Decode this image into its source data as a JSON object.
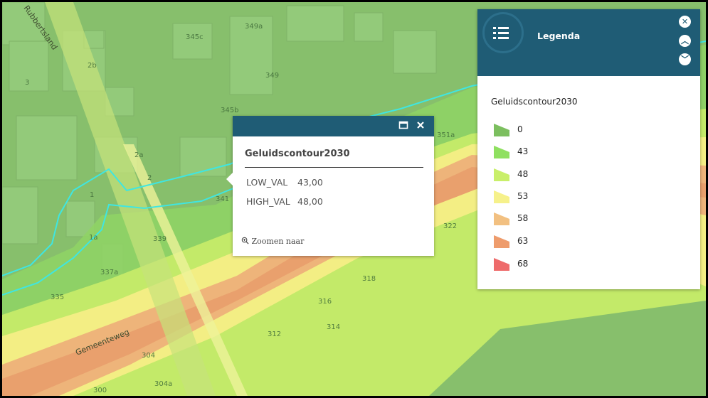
{
  "map": {
    "street_labels": [
      "Gemeenteweg",
      "Rubbertsland"
    ],
    "house_numbers": [
      "345c",
      "349a",
      "349",
      "2b",
      "3",
      "345b",
      "2a",
      "2",
      "1",
      "341",
      "1a",
      "339",
      "337a",
      "335",
      "351a",
      "322",
      "318",
      "316",
      "314",
      "312",
      "304",
      "304a",
      "300"
    ],
    "contour_colors": {
      "c0": "#7cbf5f",
      "c43": "#8fe060",
      "c48": "#c9ef6a",
      "c53": "#f6f18b",
      "c58": "#f2c081",
      "c63": "#ee9c6c",
      "c68": "#ee6b6b"
    },
    "boundary_color": "#3fe6e1"
  },
  "popup": {
    "title": "Geluidscontour2030",
    "rows": [
      {
        "key": "LOW_VAL",
        "value": "43,00"
      },
      {
        "key": "HIGH_VAL",
        "value": "48,00"
      }
    ],
    "zoom_label": "Zoomen naar",
    "icons": {
      "maximize": "window-maximize-icon",
      "close": "close-icon",
      "zoom": "magnifier-icon"
    }
  },
  "legend": {
    "title": "Legenda",
    "layer_name": "Geluidscontour2030",
    "items": [
      {
        "label": "0",
        "color": "#7cbf5f"
      },
      {
        "label": "43",
        "color": "#8fe060"
      },
      {
        "label": "48",
        "color": "#c9ef6a"
      },
      {
        "label": "53",
        "color": "#f6f18b"
      },
      {
        "label": "58",
        "color": "#f2c081"
      },
      {
        "label": "63",
        "color": "#ee9c6c"
      },
      {
        "label": "68",
        "color": "#ee6b6b"
      }
    ],
    "icons": {
      "menu": "list-icon",
      "close": "close-icon",
      "up": "chevron-up-icon",
      "down": "chevron-down-icon"
    }
  }
}
